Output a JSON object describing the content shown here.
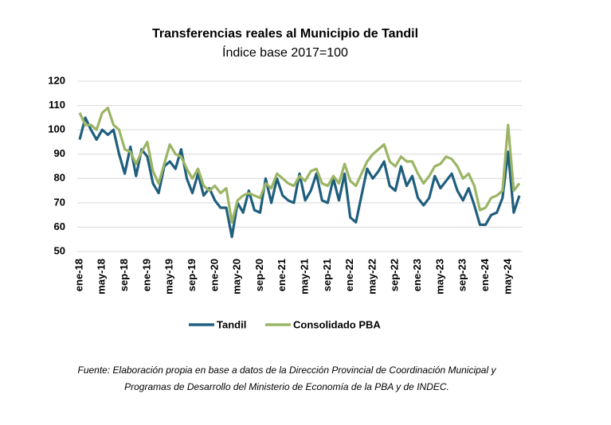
{
  "chart_data": {
    "type": "line",
    "title": "Transferencias reales al Municipio de Tandil",
    "subtitle": "Índice base 2017=100",
    "categories": [
      "ene-18",
      null,
      null,
      null,
      "may-18",
      null,
      null,
      null,
      "sep-18",
      null,
      null,
      null,
      "ene-19",
      null,
      null,
      null,
      "may-19",
      null,
      null,
      null,
      "sep-19",
      null,
      null,
      null,
      "ene-20",
      null,
      null,
      null,
      "may-20",
      null,
      null,
      null,
      "sep-20",
      null,
      null,
      null,
      "ene-21",
      null,
      null,
      null,
      "may-21",
      null,
      null,
      null,
      "sep-21",
      null,
      null,
      null,
      "ene-22",
      null,
      null,
      null,
      "may-22",
      null,
      null,
      null,
      "sep-22",
      null,
      null,
      null,
      "ene-23",
      null,
      null,
      null,
      "may-23",
      null,
      null,
      null,
      "sep-23",
      null,
      null,
      null,
      "ene-24",
      null,
      null,
      null,
      "may-24",
      null,
      null
    ],
    "series": [
      {
        "name": "Tandil",
        "color": "#1f5f7e",
        "values": [
          96,
          105,
          100,
          96,
          100,
          98,
          100,
          90,
          82,
          93,
          81,
          92,
          89,
          78,
          74,
          85,
          87,
          84,
          92,
          80,
          74,
          82,
          73,
          76,
          71,
          68,
          68,
          56,
          70,
          66,
          75,
          67,
          66,
          80,
          70,
          80,
          73,
          71,
          70,
          82,
          71,
          75,
          82,
          71,
          70,
          80,
          71,
          82,
          64,
          62,
          73,
          84,
          80,
          83,
          87,
          77,
          75,
          85,
          77,
          81,
          72,
          69,
          72,
          81,
          76,
          79,
          82,
          75,
          71,
          76,
          69,
          61,
          61,
          65,
          66,
          72,
          91,
          66,
          73
        ]
      },
      {
        "name": "Consolidado PBA",
        "color": "#9bb565",
        "values": [
          107,
          102,
          102,
          100,
          107,
          109,
          102,
          100,
          92,
          91,
          86,
          91,
          95,
          83,
          78,
          86,
          94,
          90,
          89,
          84,
          80,
          84,
          77,
          75,
          77,
          74,
          76,
          62,
          71,
          73,
          74,
          73,
          72,
          78,
          76,
          82,
          80,
          78,
          77,
          81,
          79,
          83,
          84,
          78,
          77,
          81,
          78,
          86,
          79,
          77,
          82,
          87,
          90,
          92,
          94,
          87,
          85,
          89,
          87,
          87,
          82,
          78,
          81,
          85,
          86,
          89,
          88,
          85,
          80,
          82,
          77,
          67,
          68,
          72,
          73,
          75,
          102,
          75,
          78
        ]
      }
    ],
    "ylim": [
      50,
      120
    ],
    "yticks": [
      50,
      60,
      70,
      80,
      90,
      100,
      110,
      120
    ],
    "grid": true,
    "legend": "bottom",
    "source_lines": [
      "Fuente: Elaboración propia en base a datos de la Dirección Provincial de Coordinación Municipal y",
      "Programas de Desarrollo del Ministerio de Economía de la PBA y de INDEC."
    ]
  }
}
